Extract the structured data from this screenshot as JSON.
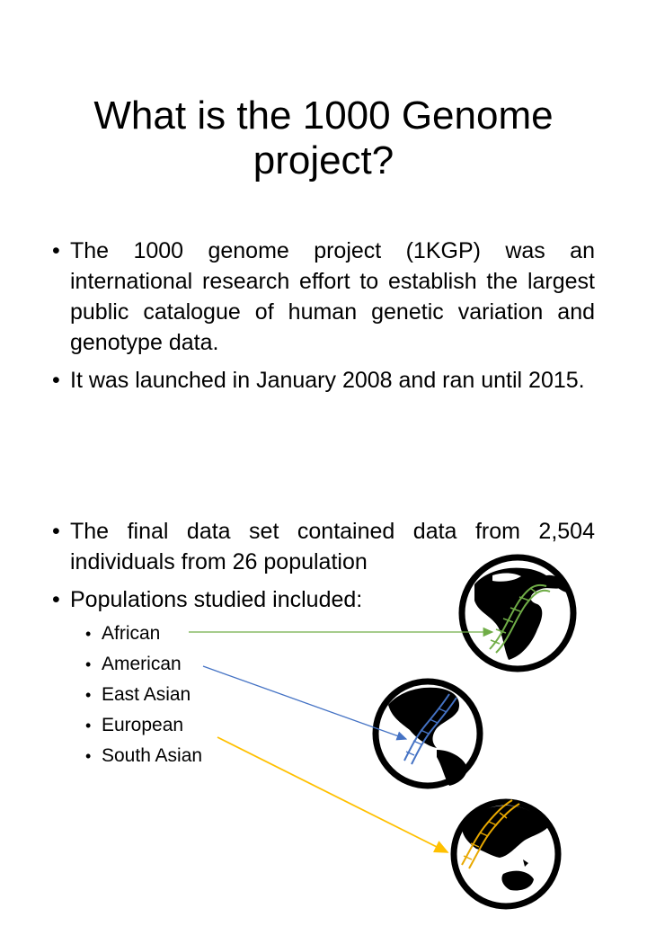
{
  "slide": {
    "title": "What is the 1000 Genome project?",
    "bullets_top": [
      "The 1000 genome project (1KGP) was an international research effort to establish the largest public catalogue of human genetic variation and genotype data.",
      "It was launched in January 2008 and ran until 2015."
    ],
    "bullets_bottom": [
      "The final data set contained data from 2,504 individuals from 26 population",
      "Populations studied included:"
    ],
    "populations": [
      "African",
      "American",
      "East Asian",
      "European",
      "South Asian"
    ]
  },
  "icons": [
    "globe-africa-icon",
    "globe-americas-icon",
    "globe-asia-icon",
    "dna-helix-icon"
  ],
  "colors": {
    "african_arrow": "#70AD47",
    "american_arrow": "#4472C4",
    "south_asian_arrow": "#FFC000"
  }
}
